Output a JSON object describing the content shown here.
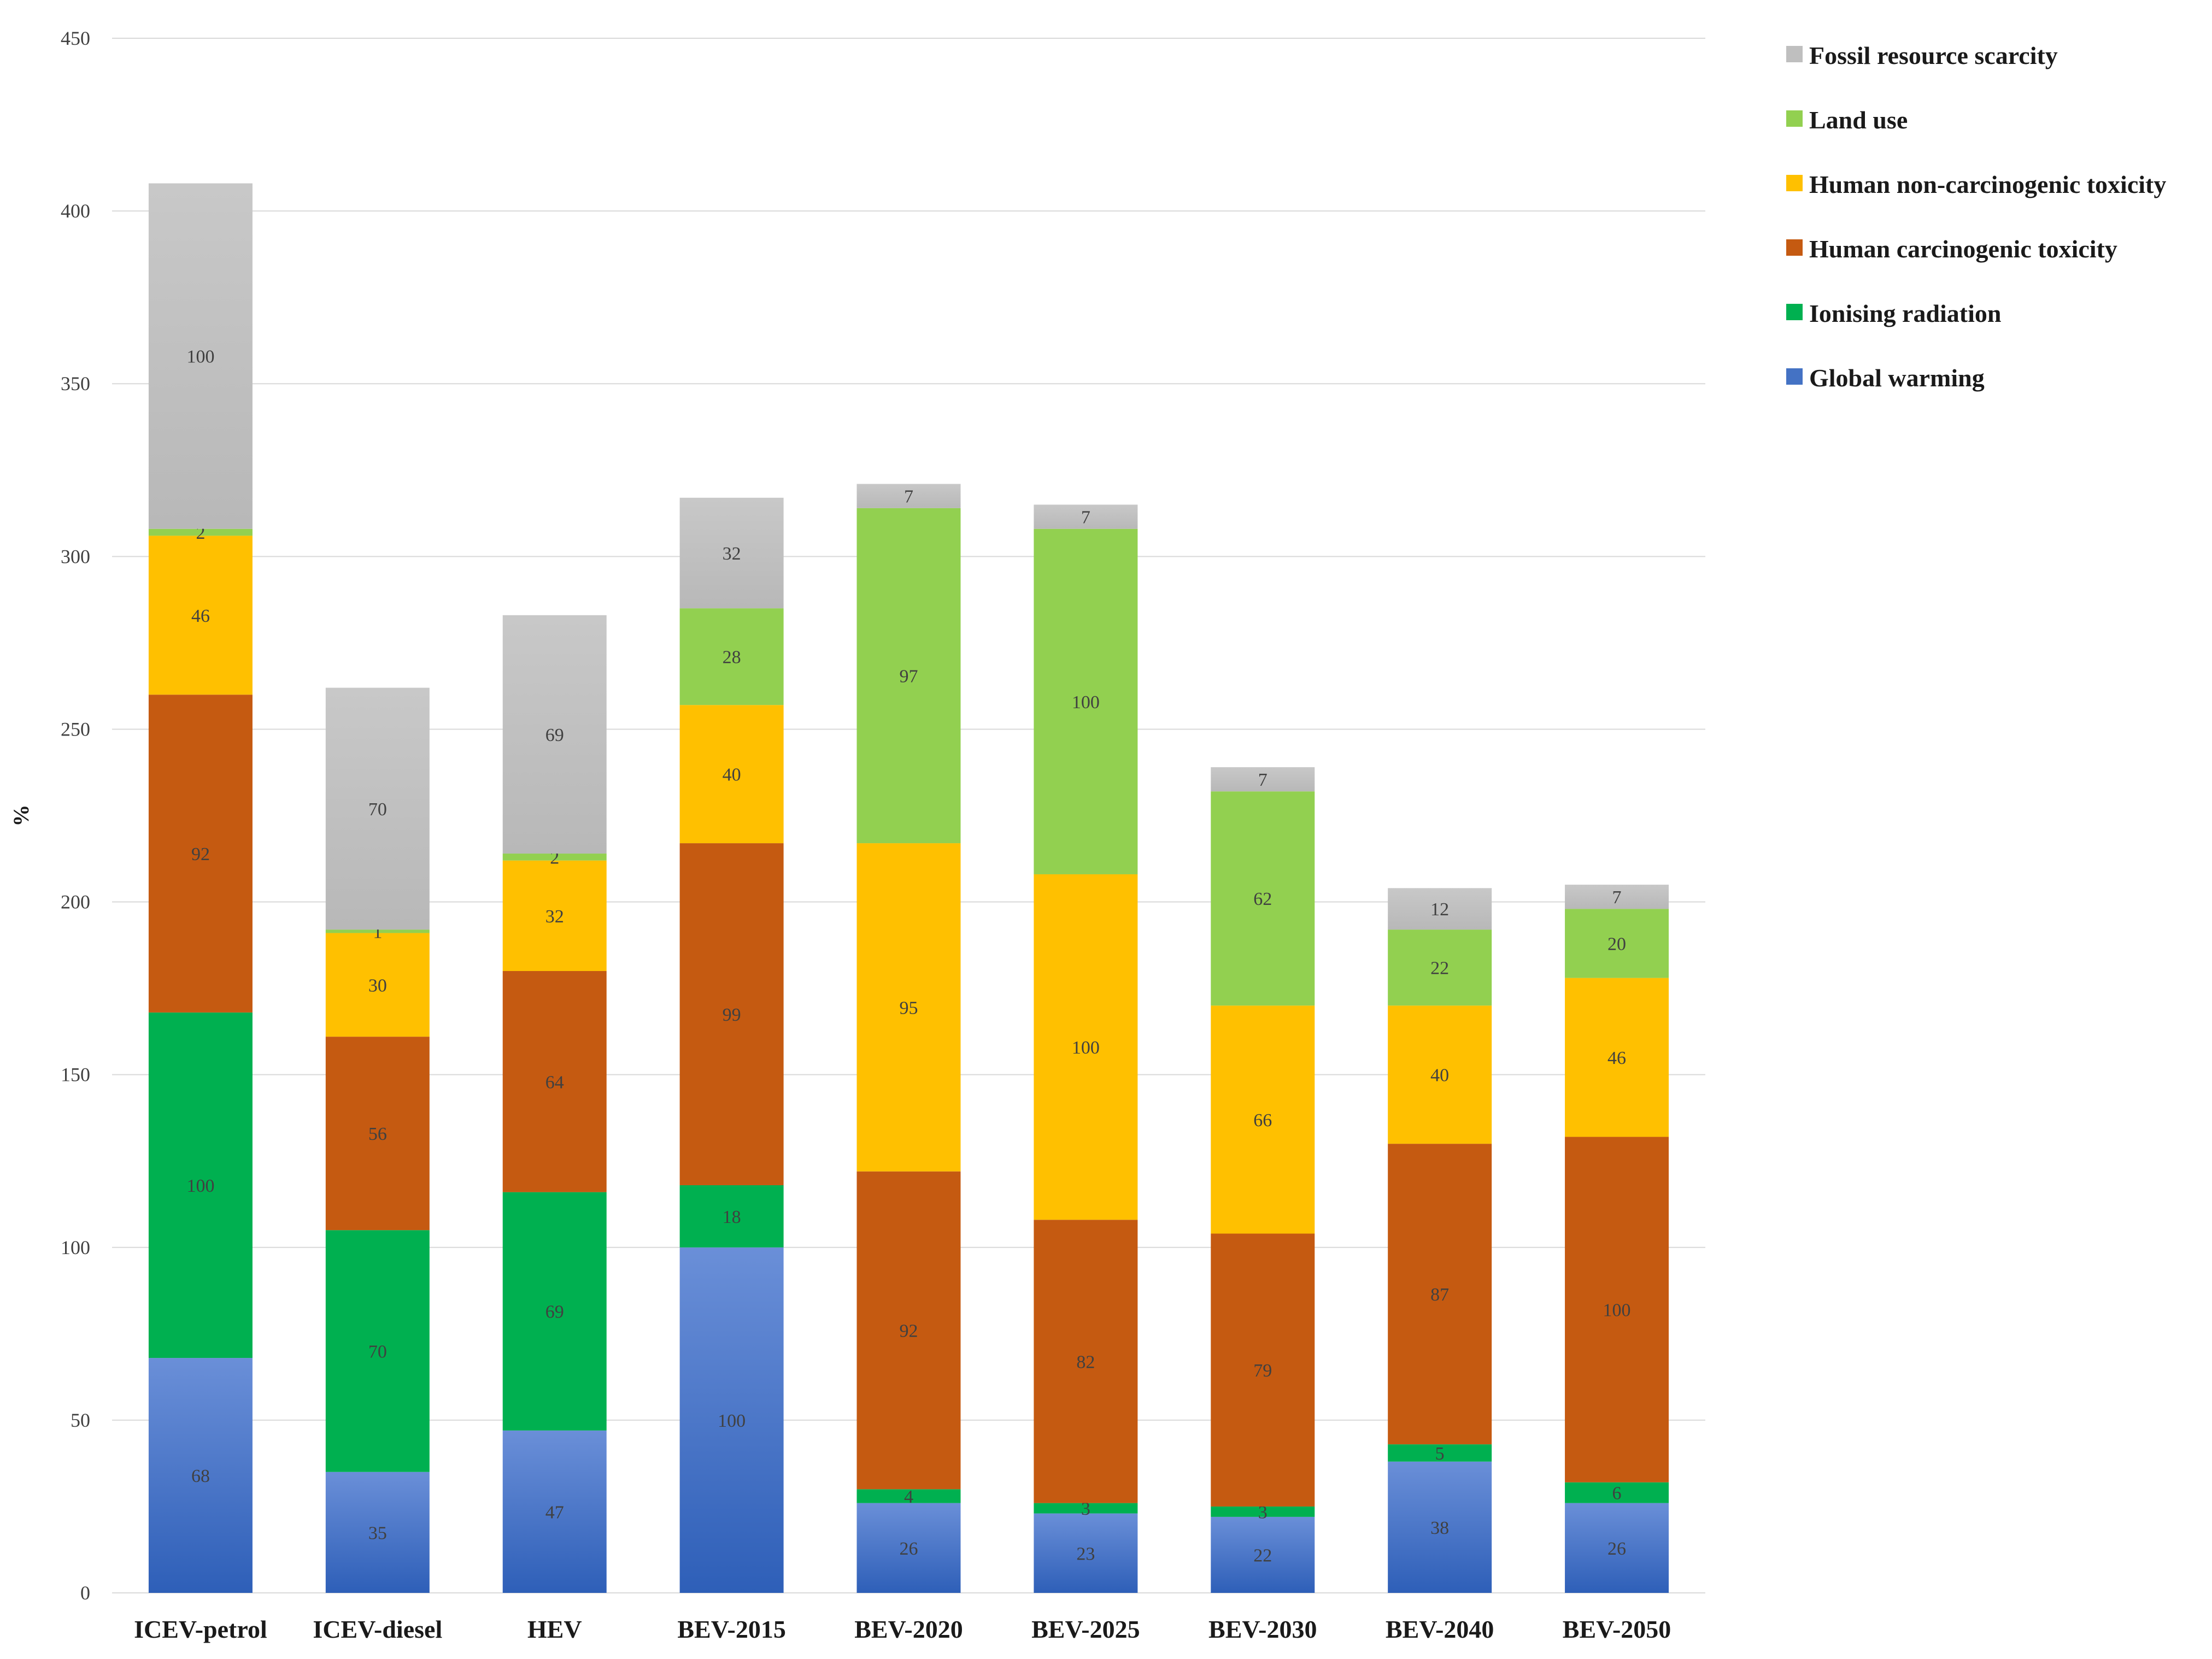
{
  "chart_data": {
    "type": "bar",
    "stacked": true,
    "title": "",
    "xlabel": "",
    "ylabel": "%",
    "ylim": [
      0,
      450
    ],
    "yticks": [
      0,
      50,
      100,
      150,
      200,
      250,
      300,
      350,
      400,
      450
    ],
    "grid": true,
    "legend_position": "top-right",
    "categories": [
      "ICEV-petrol",
      "ICEV-diesel",
      "HEV",
      "BEV-2015",
      "BEV-2020",
      "BEV-2025",
      "BEV-2030",
      "BEV-2040",
      "BEV-2050"
    ],
    "series": [
      {
        "name": "Global warming",
        "color": "#4472c4",
        "values": [
          68,
          35,
          47,
          100,
          26,
          23,
          22,
          38,
          26
        ]
      },
      {
        "name": "Ionising radiation",
        "color": "#00b050",
        "values": [
          100,
          70,
          69,
          18,
          4,
          3,
          3,
          5,
          6
        ]
      },
      {
        "name": "Human carcinogenic toxicity",
        "color": "#c55a11",
        "values": [
          92,
          56,
          64,
          99,
          92,
          82,
          79,
          87,
          100
        ]
      },
      {
        "name": "Human non-carcinogenic toxicity",
        "color": "#ffc000",
        "values": [
          46,
          30,
          32,
          40,
          95,
          100,
          66,
          40,
          46
        ]
      },
      {
        "name": "Land use",
        "color": "#92d050",
        "values": [
          2,
          1,
          2,
          28,
          97,
          100,
          62,
          22,
          20
        ]
      },
      {
        "name": "Fossil resource scarcity",
        "color": "#bfbfbf",
        "values": [
          100,
          70,
          69,
          32,
          7,
          7,
          7,
          12,
          7
        ]
      }
    ]
  }
}
